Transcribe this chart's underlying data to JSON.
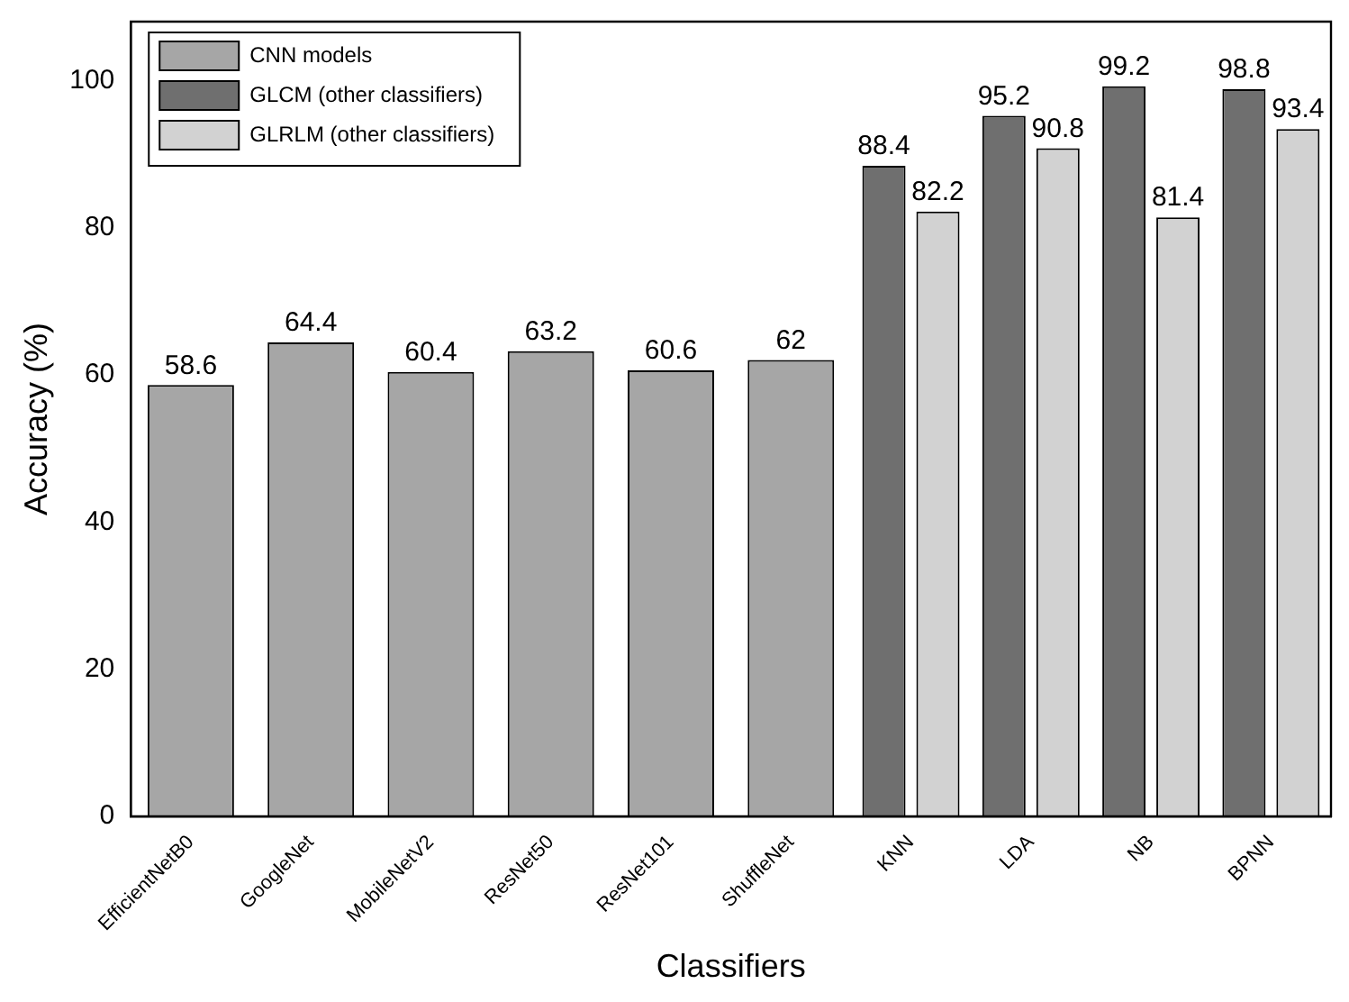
{
  "chart_data": {
    "type": "bar",
    "xlabel": "Classifiers",
    "ylabel": "Accuracy (%)",
    "categories": [
      "EfficientNetB0",
      "GoogleNet",
      "MobileNetV2",
      "ResNet50",
      "ResNet101",
      "ShuffleNet",
      "KNN",
      "LDA",
      "NB",
      "BPNN"
    ],
    "series": [
      {
        "name": "CNN models",
        "color": "#a6a6a6",
        "values": [
          58.6,
          64.4,
          60.4,
          63.2,
          60.6,
          62,
          null,
          null,
          null,
          null
        ]
      },
      {
        "name": "GLCM (other classifiers)",
        "color": "#6f6f6f",
        "values": [
          null,
          null,
          null,
          null,
          null,
          null,
          88.4,
          95.2,
          99.2,
          98.8
        ]
      },
      {
        "name": "GLRLM (other classifiers)",
        "color": "#d2d2d2",
        "values": [
          null,
          null,
          null,
          null,
          null,
          null,
          82.2,
          90.8,
          81.4,
          93.4
        ]
      }
    ],
    "ylim": [
      0,
      108
    ],
    "yticks": [
      0,
      20,
      40,
      60,
      80,
      100
    ],
    "grid": false,
    "legend": "top left",
    "data_labels": true
  }
}
